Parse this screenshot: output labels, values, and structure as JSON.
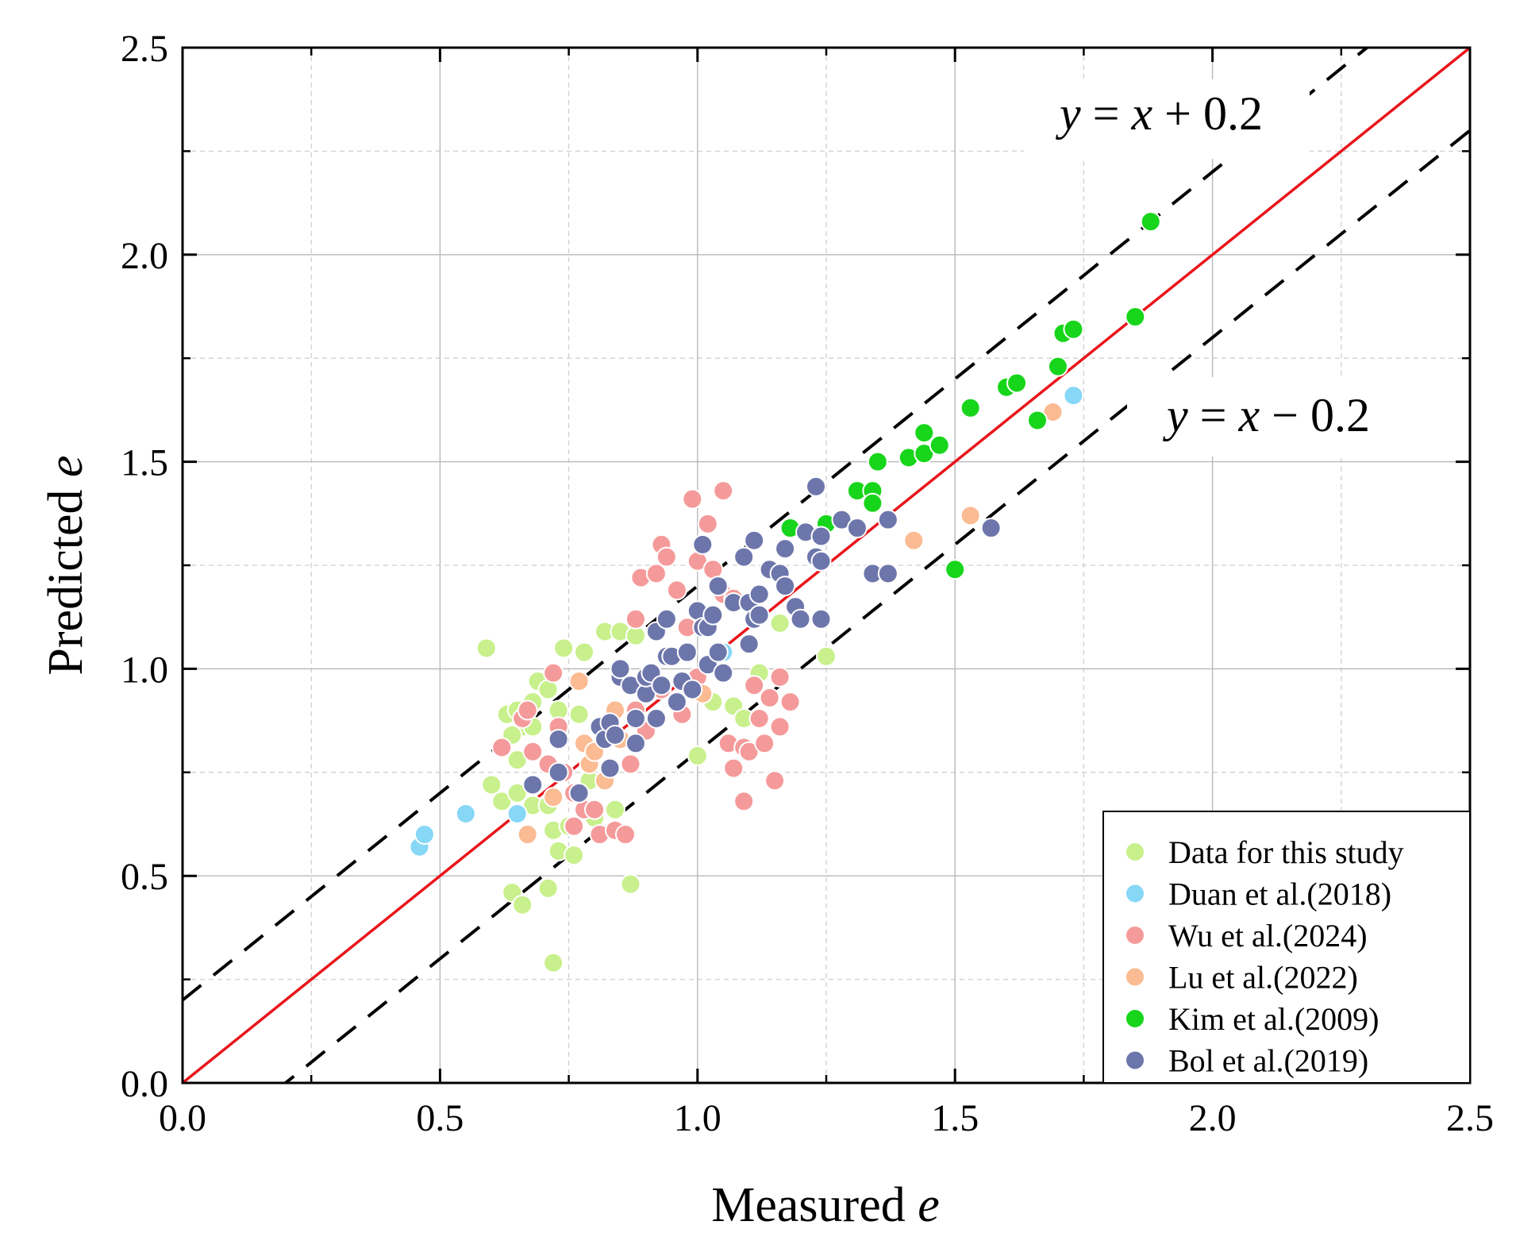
{
  "chart_data": {
    "type": "scatter",
    "title": "",
    "xlabel": "Measured e",
    "ylabel": "Predicted e",
    "xlabel_text": "Measured ",
    "ylabel_text": "Predicted ",
    "axis_var": "e",
    "xlim": [
      0,
      2.5
    ],
    "ylim": [
      0,
      2.5
    ],
    "major_ticks": [
      0.0,
      0.5,
      1.0,
      1.5,
      2.0,
      2.5
    ],
    "tick_labels": [
      "0.0",
      "0.5",
      "1.0",
      "1.5",
      "2.0",
      "2.5"
    ],
    "minor_ticks": [
      0.25,
      0.75,
      1.25,
      1.75,
      2.25
    ],
    "grid": true,
    "legend_position": "bottom-right",
    "reference_lines": [
      {
        "name": "y = x",
        "offset": 0.0,
        "style": "solid",
        "color": "#e8151b"
      },
      {
        "name": "y = x + 0.2",
        "offset": 0.2,
        "style": "dashed",
        "color": "#000000"
      },
      {
        "name": "y = x - 0.2",
        "offset": -0.2,
        "style": "dashed",
        "color": "#000000"
      }
    ],
    "annotations": [
      {
        "text": "y = x + 0.2",
        "parts": {
          "y": "y",
          "eq": " = ",
          "x": "x",
          "op": " + ",
          "num": "0.2"
        }
      },
      {
        "text": "y = x − 0.2",
        "parts": {
          "y": "y",
          "eq": " = ",
          "x": "x",
          "op": " − ",
          "num": "0.2"
        }
      }
    ],
    "series": [
      {
        "name": "Data for this study",
        "color": "#c8f08c",
        "points": [
          [
            0.59,
            1.05
          ],
          [
            0.74,
            1.05
          ],
          [
            0.78,
            1.04
          ],
          [
            0.63,
            0.89
          ],
          [
            0.65,
            0.9
          ],
          [
            0.68,
            0.92
          ],
          [
            0.69,
            0.97
          ],
          [
            0.71,
            0.95
          ],
          [
            0.73,
            0.9
          ],
          [
            0.77,
            0.89
          ],
          [
            0.66,
            0.86
          ],
          [
            0.68,
            0.86
          ],
          [
            0.64,
            0.84
          ],
          [
            0.65,
            0.78
          ],
          [
            0.6,
            0.72
          ],
          [
            0.62,
            0.68
          ],
          [
            0.65,
            0.7
          ],
          [
            0.68,
            0.67
          ],
          [
            0.71,
            0.67
          ],
          [
            0.72,
            0.61
          ],
          [
            0.75,
            0.62
          ],
          [
            0.73,
            0.56
          ],
          [
            0.76,
            0.55
          ],
          [
            0.64,
            0.46
          ],
          [
            0.66,
            0.43
          ],
          [
            0.71,
            0.47
          ],
          [
            0.72,
            0.29
          ],
          [
            0.87,
            0.48
          ],
          [
            0.84,
            0.66
          ],
          [
            0.8,
            0.64
          ],
          [
            0.78,
            0.66
          ],
          [
            0.82,
            1.09
          ],
          [
            0.85,
            1.09
          ],
          [
            1.0,
            0.79
          ],
          [
            1.03,
            0.92
          ],
          [
            1.07,
            0.91
          ],
          [
            1.09,
            0.88
          ],
          [
            1.12,
            0.99
          ],
          [
            1.16,
            1.11
          ],
          [
            1.25,
            1.03
          ],
          [
            0.88,
            1.08
          ],
          [
            0.79,
            0.73
          ]
        ]
      },
      {
        "name": "Duan et al.(2018)",
        "color": "#87d7f7",
        "points": [
          [
            0.46,
            0.57
          ],
          [
            0.47,
            0.6
          ],
          [
            0.55,
            0.65
          ],
          [
            0.65,
            0.65
          ],
          [
            1.05,
            1.04
          ],
          [
            1.73,
            1.66
          ]
        ]
      },
      {
        "name": "Wu et al.(2024)",
        "color": "#f59a9a",
        "points": [
          [
            0.62,
            0.81
          ],
          [
            0.66,
            0.88
          ],
          [
            0.67,
            0.9
          ],
          [
            0.68,
            0.8
          ],
          [
            0.72,
            0.99
          ],
          [
            0.73,
            0.86
          ],
          [
            0.71,
            0.77
          ],
          [
            0.74,
            0.75
          ],
          [
            0.76,
            0.7
          ],
          [
            0.76,
            0.62
          ],
          [
            0.78,
            0.66
          ],
          [
            0.8,
            0.66
          ],
          [
            0.81,
            0.6
          ],
          [
            0.84,
            0.61
          ],
          [
            0.86,
            0.6
          ],
          [
            0.87,
            0.77
          ],
          [
            0.88,
            0.9
          ],
          [
            0.9,
            0.85
          ],
          [
            0.88,
            1.12
          ],
          [
            0.89,
            1.22
          ],
          [
            0.92,
            1.23
          ],
          [
            0.93,
            1.3
          ],
          [
            0.94,
            1.27
          ],
          [
            0.96,
            1.19
          ],
          [
            0.98,
            1.1
          ],
          [
            0.99,
            1.41
          ],
          [
            1.0,
            1.26
          ],
          [
            1.02,
            1.35
          ],
          [
            1.03,
            1.24
          ],
          [
            1.05,
            1.43
          ],
          [
            1.05,
            1.18
          ],
          [
            1.07,
            1.17
          ],
          [
            1.06,
            0.82
          ],
          [
            1.07,
            0.76
          ],
          [
            1.09,
            0.68
          ],
          [
            1.09,
            0.81
          ],
          [
            1.1,
            0.8
          ],
          [
            1.11,
            0.96
          ],
          [
            1.12,
            0.88
          ],
          [
            1.14,
            0.93
          ],
          [
            1.15,
            0.73
          ],
          [
            1.16,
            0.86
          ],
          [
            1.16,
            0.98
          ],
          [
            1.18,
            0.92
          ],
          [
            0.97,
            0.89
          ],
          [
            1.0,
            0.98
          ],
          [
            1.13,
            0.82
          ],
          [
            0.93,
            0.95
          ]
        ]
      },
      {
        "name": "Lu  et al.(2022)",
        "color": "#fbbb93",
        "points": [
          [
            0.67,
            0.6
          ],
          [
            0.72,
            0.69
          ],
          [
            0.77,
            0.97
          ],
          [
            0.78,
            0.82
          ],
          [
            0.79,
            0.77
          ],
          [
            0.8,
            0.8
          ],
          [
            0.82,
            0.73
          ],
          [
            0.84,
            0.9
          ],
          [
            0.85,
            0.83
          ],
          [
            1.01,
            0.94
          ],
          [
            1.42,
            1.31
          ],
          [
            1.53,
            1.37
          ],
          [
            1.69,
            1.62
          ]
        ]
      },
      {
        "name": "Kim et al.(2009)",
        "color": "#17d51a",
        "points": [
          [
            1.18,
            1.34
          ],
          [
            1.25,
            1.35
          ],
          [
            1.31,
            1.43
          ],
          [
            1.34,
            1.43
          ],
          [
            1.34,
            1.4
          ],
          [
            1.35,
            1.5
          ],
          [
            1.41,
            1.51
          ],
          [
            1.44,
            1.52
          ],
          [
            1.44,
            1.57
          ],
          [
            1.47,
            1.54
          ],
          [
            1.5,
            1.24
          ],
          [
            1.53,
            1.63
          ],
          [
            1.6,
            1.68
          ],
          [
            1.62,
            1.69
          ],
          [
            1.66,
            1.6
          ],
          [
            1.7,
            1.73
          ],
          [
            1.71,
            1.81
          ],
          [
            1.73,
            1.82
          ],
          [
            1.85,
            1.85
          ],
          [
            1.88,
            2.08
          ]
        ]
      },
      {
        "name": "Bol et al.(2019)",
        "color": "#6d76ab",
        "points": [
          [
            0.68,
            0.72
          ],
          [
            0.73,
            0.75
          ],
          [
            0.73,
            0.83
          ],
          [
            0.77,
            0.7
          ],
          [
            0.81,
            0.86
          ],
          [
            0.82,
            0.83
          ],
          [
            0.83,
            0.87
          ],
          [
            0.84,
            0.84
          ],
          [
            0.83,
            0.76
          ],
          [
            0.85,
            0.98
          ],
          [
            0.85,
            1.0
          ],
          [
            0.87,
            0.96
          ],
          [
            0.88,
            0.82
          ],
          [
            0.88,
            0.88
          ],
          [
            0.9,
            0.94
          ],
          [
            0.9,
            0.98
          ],
          [
            0.91,
            0.99
          ],
          [
            0.92,
            0.88
          ],
          [
            0.92,
            1.09
          ],
          [
            0.93,
            0.96
          ],
          [
            0.94,
            1.03
          ],
          [
            0.94,
            1.12
          ],
          [
            0.95,
            1.03
          ],
          [
            0.96,
            0.92
          ],
          [
            0.97,
            0.97
          ],
          [
            0.98,
            1.04
          ],
          [
            0.99,
            0.95
          ],
          [
            1.0,
            1.14
          ],
          [
            1.01,
            1.1
          ],
          [
            1.01,
            1.3
          ],
          [
            1.02,
            1.1
          ],
          [
            1.02,
            1.01
          ],
          [
            1.03,
            1.13
          ],
          [
            1.04,
            1.2
          ],
          [
            1.04,
            1.04
          ],
          [
            1.05,
            0.99
          ],
          [
            1.07,
            1.16
          ],
          [
            1.09,
            1.27
          ],
          [
            1.1,
            1.16
          ],
          [
            1.1,
            1.06
          ],
          [
            1.11,
            1.12
          ],
          [
            1.11,
            1.31
          ],
          [
            1.12,
            1.18
          ],
          [
            1.12,
            1.13
          ],
          [
            1.14,
            1.24
          ],
          [
            1.16,
            1.23
          ],
          [
            1.17,
            1.2
          ],
          [
            1.17,
            1.29
          ],
          [
            1.19,
            1.15
          ],
          [
            1.2,
            1.12
          ],
          [
            1.21,
            1.33
          ],
          [
            1.23,
            1.44
          ],
          [
            1.23,
            1.27
          ],
          [
            1.24,
            1.12
          ],
          [
            1.24,
            1.32
          ],
          [
            1.24,
            1.26
          ],
          [
            1.28,
            1.36
          ],
          [
            1.31,
            1.34
          ],
          [
            1.34,
            1.23
          ],
          [
            1.37,
            1.23
          ],
          [
            1.37,
            1.36
          ],
          [
            1.57,
            1.34
          ]
        ]
      }
    ]
  }
}
